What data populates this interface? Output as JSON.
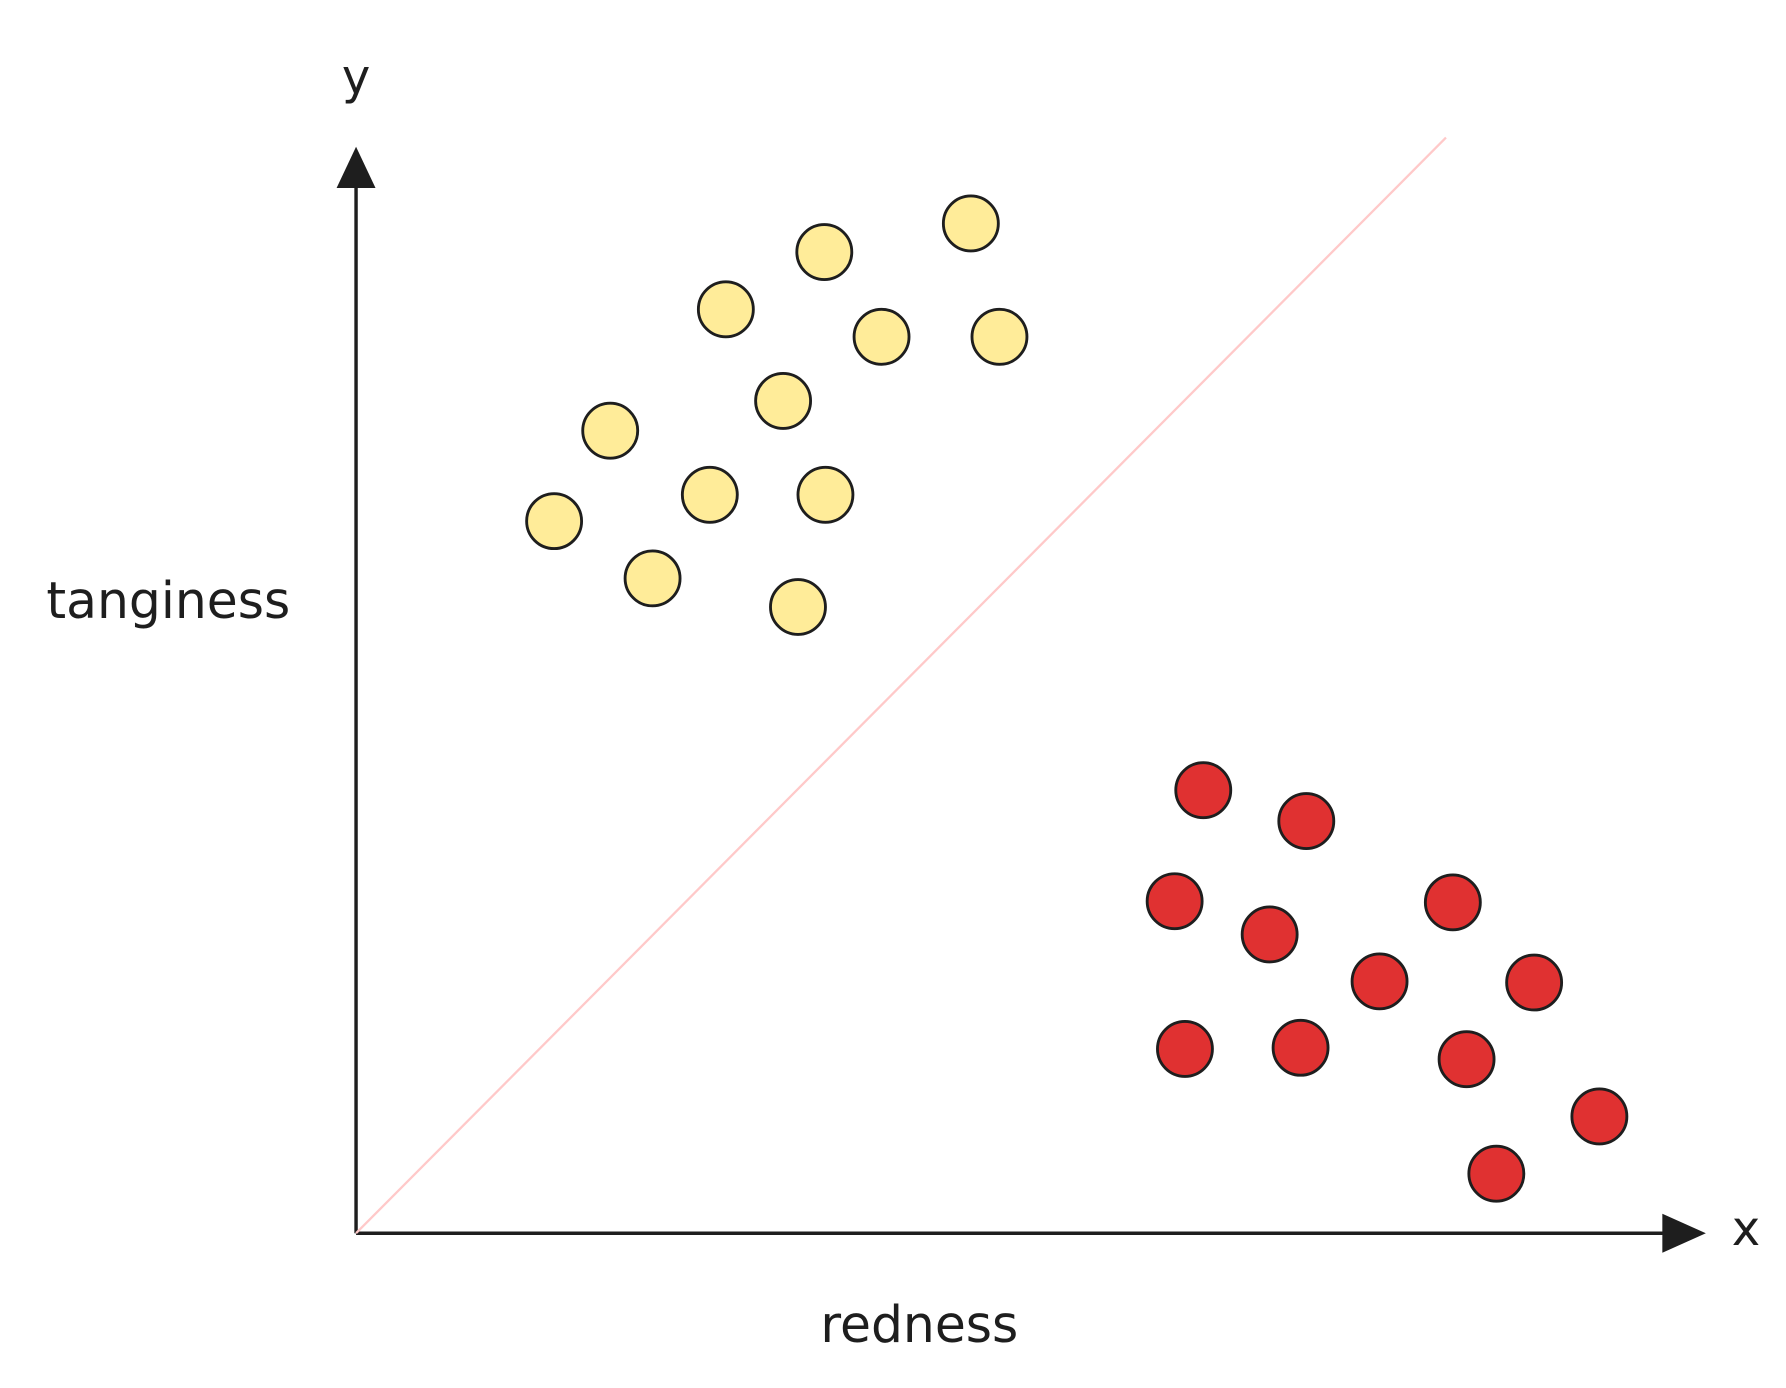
{
  "chart_data": {
    "type": "scatter",
    "x_label": "redness",
    "y_label": "tanginess",
    "x_axis_letter": "x",
    "y_axis_letter": "y",
    "xlim": [
      0,
      118
    ],
    "ylim": [
      0,
      95
    ],
    "series": [
      {
        "color": "#ffec99",
        "x": [
          17.3,
          25.9,
          22.2,
          30.9,
          32.3,
          37.3,
          38.6,
          40.9,
          41.0,
          45.9,
          53.7,
          56.2
        ],
        "values": [
          62.2,
          57.2,
          70.1,
          64.5,
          80.7,
          72.7,
          54.7,
          85.7,
          64.5,
          78.3,
          88.2,
          78.3
        ]
      },
      {
        "color": "#e03131",
        "x": [
          74.0,
          83.0,
          71.5,
          79.8,
          95.8,
          89.4,
          102.9,
          72.4,
          82.5,
          97.0,
          108.6,
          99.6
        ],
        "values": [
          38.7,
          36.0,
          29.0,
          26.1,
          28.9,
          22.0,
          21.9,
          16.1,
          16.2,
          15.2,
          10.2,
          5.2
        ]
      }
    ],
    "line": {
      "color": "#ffc9c9",
      "x": [
        0,
        95.2
      ],
      "values": [
        0,
        95.7
      ]
    }
  }
}
